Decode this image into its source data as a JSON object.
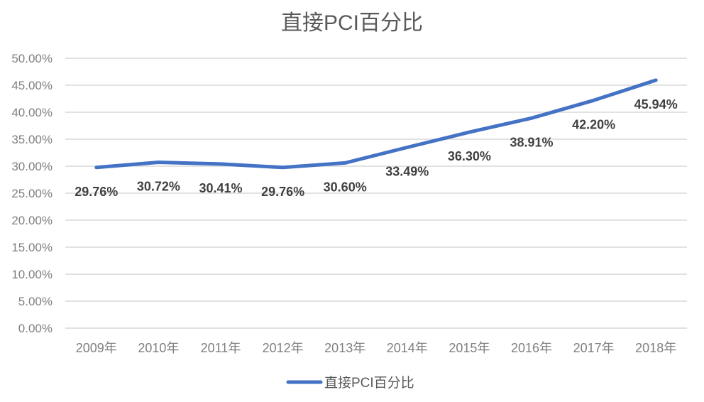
{
  "chart_data": {
    "type": "line",
    "title": "直接PCI百分比",
    "xlabel": "",
    "ylabel": "",
    "categories": [
      "2009年",
      "2010年",
      "2011年",
      "2012年",
      "2013年",
      "2014年",
      "2015年",
      "2016年",
      "2017年",
      "2018年"
    ],
    "series": [
      {
        "name": "直接PCI百分比",
        "color": "#4472c4",
        "values": [
          29.76,
          30.72,
          30.41,
          29.76,
          30.6,
          33.49,
          36.3,
          38.91,
          42.2,
          45.94
        ],
        "labels": [
          "29.76%",
          "30.72%",
          "30.41%",
          "29.76%",
          "30.60%",
          "33.49%",
          "36.30%",
          "38.91%",
          "42.20%",
          "45.94%"
        ]
      }
    ],
    "ylim": [
      0,
      50
    ],
    "yticks": [
      "0.00%",
      "5.00%",
      "10.00%",
      "15.00%",
      "20.00%",
      "25.00%",
      "30.00%",
      "35.00%",
      "40.00%",
      "45.00%",
      "50.00%"
    ],
    "grid": true,
    "legend_position": "bottom"
  }
}
